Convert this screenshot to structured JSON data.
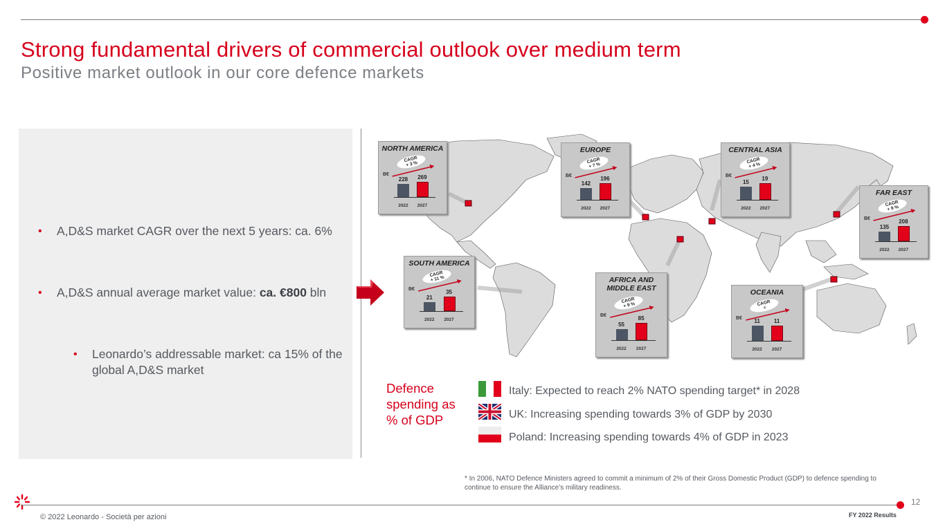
{
  "header": {
    "title": "Strong fundamental drivers of commercial outlook over medium term",
    "subtitle": "Positive market outlook in our core defence markets"
  },
  "bullets": {
    "b1": "A,D&S market CAGR over the next 5 years: ca. 6%",
    "b2_prefix": "A,D&S annual average market value: ",
    "b2_bold": "ca. €800",
    "b2_suffix": " bln",
    "b3": "Leonardo’s addressable market: ca 15% of the global A,D&S market",
    "bullet_char": "•"
  },
  "chart_data": [
    {
      "type": "bar",
      "title": "NORTH AMERICA",
      "unit": "B€",
      "categories": [
        "2022",
        "2027"
      ],
      "values": [
        228,
        269
      ],
      "cagr": "CAGR\n+ 3 %"
    },
    {
      "type": "bar",
      "title": "EUROPE",
      "unit": "B€",
      "categories": [
        "2022",
        "2027"
      ],
      "values": [
        142,
        196
      ],
      "cagr": "CAGR\n+ 7 %"
    },
    {
      "type": "bar",
      "title": "CENTRAL ASIA",
      "unit": "B€",
      "categories": [
        "2022",
        "2027"
      ],
      "values": [
        15,
        19
      ],
      "cagr": "CAGR\n+ 4 %"
    },
    {
      "type": "bar",
      "title": "FAR EAST",
      "unit": "B€",
      "categories": [
        "2022",
        "2027"
      ],
      "values": [
        135,
        208
      ],
      "cagr": "CAGR\n+ 9 %"
    },
    {
      "type": "bar",
      "title": "SOUTH AMERICA",
      "unit": "B€",
      "categories": [
        "2022",
        "2027"
      ],
      "values": [
        21,
        35
      ],
      "cagr": "CAGR\n+ 11 %"
    },
    {
      "type": "bar",
      "title": "AFRICA AND\nMIDDLE EAST",
      "unit": "B€",
      "categories": [
        "2022",
        "2027"
      ],
      "values": [
        55,
        85
      ],
      "cagr": "CAGR\n+ 9 %"
    },
    {
      "type": "bar",
      "title": "OCEANIA",
      "unit": "B€",
      "categories": [
        "2022",
        "2027"
      ],
      "values": [
        11,
        11
      ],
      "cagr": "CAGR\n="
    }
  ],
  "legend": {
    "title": "Defence spending as % of GDP",
    "italy": "Italy: Expected to reach 2% NATO spending target* in 2028",
    "uk": "UK: Increasing spending towards 3% of GDP by 2030",
    "poland": "Poland: Increasing spending towards 4% of GDP in 2023"
  },
  "footnote": "* In 2006, NATO Defence Ministers agreed to commit a minimum of 2% of their Gross Domestic Product (GDP) to defence spending to continue to ensure the Alliance’s military readiness.",
  "footer": {
    "page_number": "12",
    "report": "FY 2022 Results",
    "copyright": "© 2022 Leonardo - Società per azioni"
  },
  "colors": {
    "accent": "#e2001a",
    "bar_2022": "#4b5563",
    "region_box": "#c8c8c8",
    "map_land": "#d9d9d9"
  },
  "icons": [
    "arrow-right-icon",
    "world-map",
    "leonardo-logo-icon",
    "flag-italy-icon",
    "flag-uk-icon",
    "flag-poland-icon"
  ]
}
